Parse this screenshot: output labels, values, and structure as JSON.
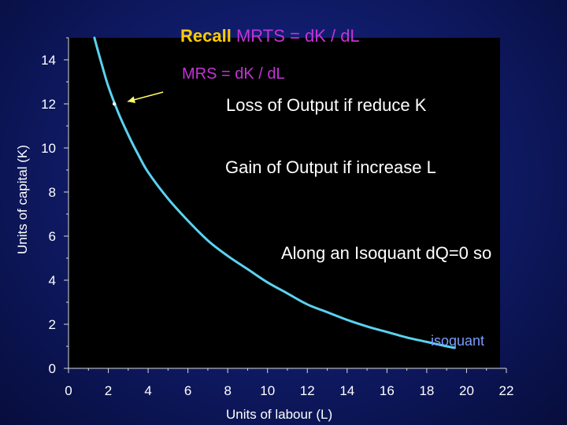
{
  "title": {
    "lead": "Recall",
    "formula": "MRTS = dK / dL"
  },
  "subtitle": "MRS = dK / dL",
  "notes": {
    "loss": "Loss of Output if reduce K",
    "gain": "Gain of Output if increase L",
    "along": "Along an Isoquant dQ=0 so"
  },
  "colors": {
    "background": "#0c1760",
    "plot_area": "#000000",
    "curve": "#5ad2f0",
    "title_lead": "#ffcc00",
    "formula": "#c433d6",
    "isoquant_label": "#7a9cff",
    "arrow": "#ffff66"
  },
  "chart_data": {
    "type": "line",
    "title": "",
    "xlabel": "Units of labour (L)",
    "ylabel": "Units of capital (K)",
    "xlim": [
      0,
      22
    ],
    "ylim": [
      0,
      15
    ],
    "xticks": [
      0,
      2,
      4,
      6,
      8,
      10,
      12,
      14,
      16,
      18,
      20,
      22
    ],
    "yticks": [
      0,
      2,
      4,
      6,
      8,
      10,
      12,
      14
    ],
    "grid": false,
    "series": [
      {
        "name": "isoquant",
        "x": [
          1.3,
          1.7,
          2.0,
          2.5,
          3.0,
          3.5,
          4.0,
          5.0,
          6.0,
          7.0,
          8.0,
          9.0,
          10.0,
          11.0,
          12.0,
          13.0,
          14.0,
          15.0,
          16.0,
          17.0,
          18.0,
          19.0,
          19.4
        ],
        "y": [
          15.0,
          13.7,
          12.8,
          11.6,
          10.6,
          9.7,
          8.9,
          7.7,
          6.7,
          5.8,
          5.1,
          4.5,
          3.9,
          3.4,
          2.9,
          2.55,
          2.2,
          1.9,
          1.65,
          1.4,
          1.2,
          1.0,
          0.93
        ]
      }
    ],
    "marker": {
      "x": 2.3,
      "y": 12.0
    },
    "annotations": [
      "isoquant"
    ]
  }
}
